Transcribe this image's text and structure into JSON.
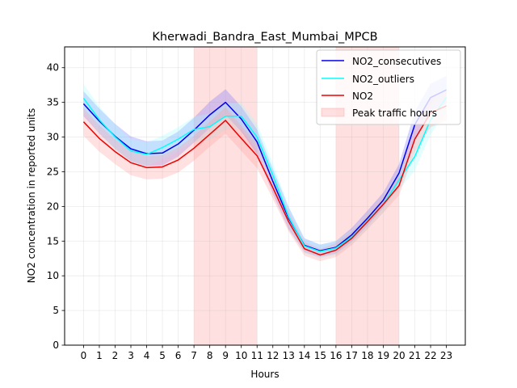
{
  "chart_data": {
    "type": "line",
    "title": "Kherwadi_Bandra_East_Mumbai_MPCB",
    "xlabel": "Hours",
    "ylabel": "NO2 concentration in reported units",
    "xlim": [
      -1.2,
      24.2
    ],
    "ylim": [
      0,
      43
    ],
    "x": [
      0,
      1,
      2,
      3,
      4,
      5,
      6,
      7,
      8,
      9,
      10,
      11,
      12,
      13,
      14,
      15,
      16,
      17,
      18,
      19,
      20,
      21,
      22,
      23
    ],
    "xticks": [
      0,
      1,
      2,
      3,
      4,
      5,
      6,
      7,
      8,
      9,
      10,
      11,
      12,
      13,
      14,
      15,
      16,
      17,
      18,
      19,
      20,
      21,
      22,
      23
    ],
    "yticks": [
      0,
      5,
      10,
      15,
      20,
      25,
      30,
      35,
      40
    ],
    "grid": true,
    "legend_position": "top-right",
    "series": [
      {
        "name": "NO2_consecutives",
        "color": "#0000ee",
        "band_color": "#6f6fff",
        "values": [
          34.8,
          32.3,
          30.1,
          28.3,
          27.6,
          27.7,
          29.0,
          31.0,
          33.2,
          35.0,
          32.6,
          29.3,
          23.6,
          18.3,
          14.4,
          13.6,
          14.1,
          15.9,
          18.3,
          20.9,
          24.8,
          31.8,
          35.7,
          36.8
        ],
        "lower": [
          33.0,
          30.5,
          28.3,
          26.5,
          25.8,
          25.9,
          27.2,
          29.2,
          31.3,
          33.2,
          30.8,
          27.5,
          21.8,
          16.7,
          13.4,
          12.7,
          13.2,
          14.9,
          17.2,
          19.8,
          23.5,
          29.9,
          33.7,
          34.8
        ],
        "upper": [
          36.6,
          34.1,
          31.9,
          30.1,
          29.4,
          29.5,
          30.8,
          32.8,
          35.1,
          36.9,
          34.4,
          31.1,
          25.4,
          19.9,
          15.4,
          14.5,
          15.0,
          16.9,
          19.4,
          22.0,
          26.1,
          33.7,
          37.7,
          38.8
        ]
      },
      {
        "name": "NO2_outliers",
        "color": "#00ffff",
        "band_color": "#9ffcff",
        "values": [
          35.6,
          32.5,
          30.0,
          28.0,
          27.5,
          28.5,
          29.7,
          31.1,
          31.5,
          33.0,
          33.0,
          30.0,
          24.5,
          18.5,
          14.3,
          13.5,
          14.0,
          15.6,
          17.9,
          20.3,
          23.8,
          27.2,
          32.5,
          35.7
        ],
        "lower": [
          33.6,
          30.6,
          28.2,
          26.3,
          25.8,
          26.8,
          28.0,
          29.3,
          29.6,
          31.1,
          31.1,
          28.1,
          22.8,
          17.0,
          13.3,
          12.5,
          13.0,
          14.6,
          16.8,
          19.1,
          22.4,
          25.2,
          30.4,
          33.6
        ],
        "upper": [
          37.6,
          34.4,
          31.8,
          29.7,
          29.2,
          30.2,
          31.4,
          32.9,
          33.4,
          34.9,
          34.9,
          31.9,
          26.2,
          20.0,
          15.3,
          14.5,
          15.0,
          16.6,
          19.0,
          21.5,
          25.2,
          29.2,
          34.6,
          37.8
        ]
      },
      {
        "name": "NO2",
        "color": "#ee0000",
        "band_color": "#ff9a9a",
        "values": [
          32.2,
          29.8,
          27.9,
          26.3,
          25.6,
          25.7,
          26.7,
          28.4,
          30.4,
          32.4,
          29.8,
          27.3,
          22.7,
          17.8,
          13.9,
          13.0,
          13.7,
          15.4,
          17.8,
          20.3,
          23.0,
          29.7,
          33.5,
          34.5
        ],
        "lower": [
          30.2,
          27.9,
          26.1,
          24.5,
          23.9,
          24.0,
          24.9,
          26.6,
          28.6,
          30.5,
          28.0,
          25.5,
          21.1,
          16.4,
          12.9,
          12.1,
          12.7,
          14.4,
          16.7,
          19.1,
          21.6,
          27.8,
          31.4,
          32.4
        ],
        "upper": [
          34.2,
          31.7,
          29.7,
          28.1,
          27.3,
          27.4,
          28.5,
          30.2,
          32.2,
          34.3,
          31.6,
          29.1,
          24.3,
          19.2,
          14.9,
          13.9,
          14.7,
          16.4,
          18.9,
          21.5,
          24.4,
          31.6,
          35.6,
          36.6
        ]
      }
    ],
    "shaded_regions": {
      "name": "Peak traffic hours",
      "color": "#ff9999",
      "spans": [
        [
          7,
          11
        ],
        [
          16,
          20
        ]
      ]
    }
  }
}
